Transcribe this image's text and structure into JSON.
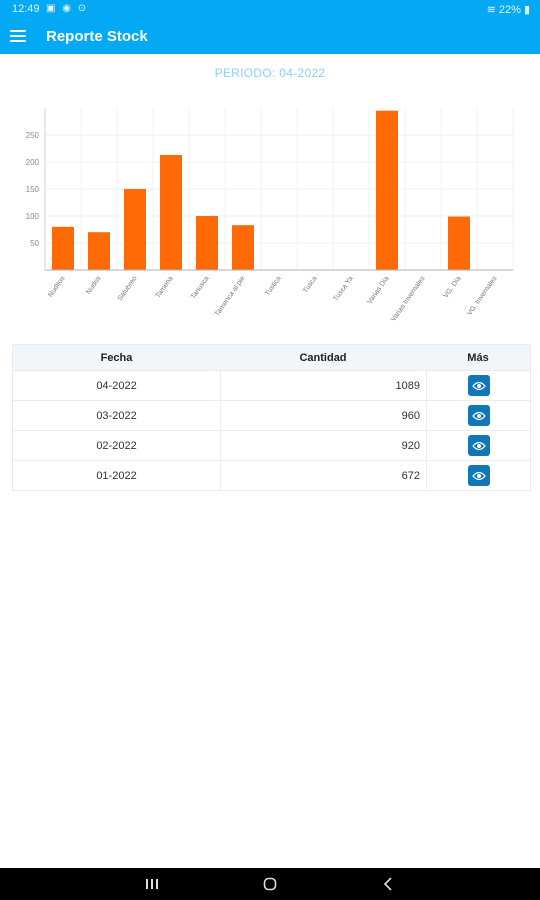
{
  "status": {
    "time": "12:49",
    "battery": "22%"
  },
  "appbar": {
    "title": "Reporte Stock"
  },
  "periodo": "PERIODO: 04-2022",
  "colors": {
    "primary": "#03a9f4",
    "bar": "#ff6a06",
    "eye_button": "#1178b8"
  },
  "chart_data": {
    "type": "bar",
    "categories": [
      "Nuditos",
      "Nudos",
      "Salubreo",
      "Tamena",
      "Tanusca",
      "Tamenca al pie",
      "Tustica",
      "Tusca",
      "Tusca Ya",
      "Varias Día",
      "Varias Invernales",
      "VG. Día",
      "VG. Invernales"
    ],
    "values": [
      80,
      70,
      150,
      213,
      100,
      83,
      0,
      0,
      0,
      295,
      0,
      99,
      0
    ],
    "yticks": [
      50,
      100,
      150,
      200,
      250
    ],
    "ylim": [
      0,
      300
    ],
    "grid": true
  },
  "table": {
    "headers": {
      "fecha": "Fecha",
      "cantidad": "Cantidad",
      "mas": "Más"
    },
    "rows": [
      {
        "fecha": "04-2022",
        "cantidad": "1089"
      },
      {
        "fecha": "03-2022",
        "cantidad": "960"
      },
      {
        "fecha": "02-2022",
        "cantidad": "920"
      },
      {
        "fecha": "01-2022",
        "cantidad": "672"
      }
    ],
    "row_icon": "eye-icon"
  },
  "navbar": {
    "icons": [
      "recent-apps-icon",
      "home-icon",
      "back-icon"
    ]
  }
}
